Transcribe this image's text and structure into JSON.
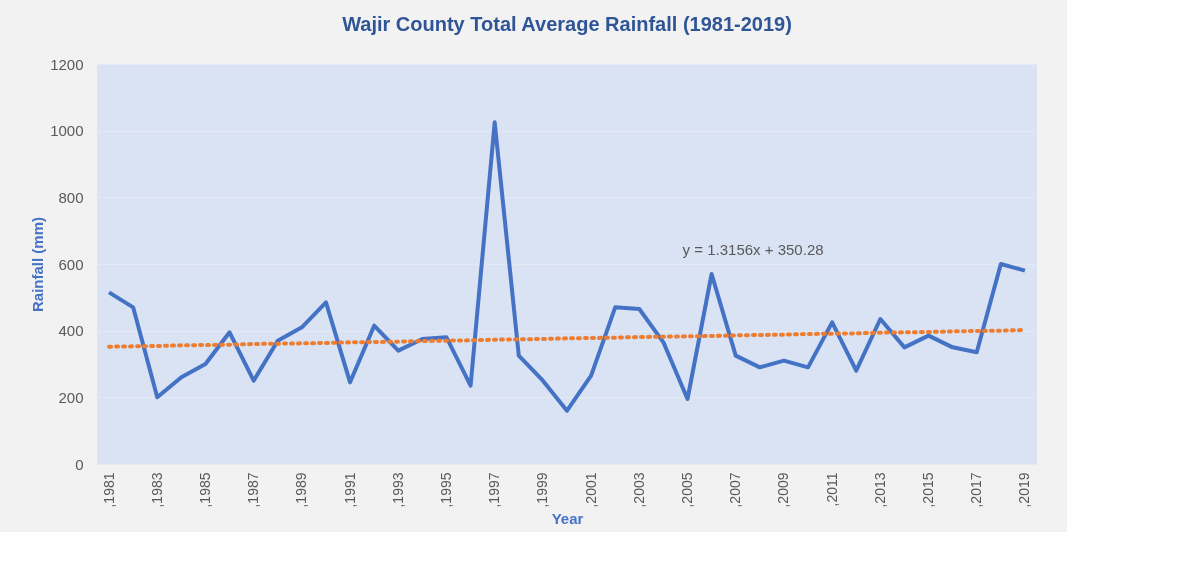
{
  "chart_data": {
    "type": "line",
    "title": "Wajir County Total Average Rainfall (1981-2019)",
    "xlabel": "Year",
    "ylabel": "Rainfall (mm)",
    "categories": [
      ",1981",
      null,
      ",1983",
      null,
      ",1985",
      null,
      ",1987",
      null,
      ",1989",
      null,
      ",1991",
      null,
      ",1993",
      null,
      ",1995",
      null,
      ",1997",
      null,
      ",1999",
      null,
      ",2001",
      null,
      ",2003",
      null,
      ",2005",
      null,
      ",2007",
      null,
      ",2009",
      null,
      ",2011",
      null,
      ",2013",
      null,
      ",2015",
      null,
      ",2017",
      null,
      ",2019"
    ],
    "series": [
      {
        "color": "#4472c4",
        "line_style": "solid",
        "values": [
          515,
          470,
          200,
          260,
          300,
          395,
          250,
          370,
          410,
          485,
          245,
          415,
          340,
          375,
          380,
          235,
          1025,
          325,
          250,
          160,
          265,
          470,
          465,
          365,
          195,
          570,
          325,
          290,
          310,
          290,
          425,
          280,
          435,
          350,
          385,
          350,
          335,
          600,
          580
        ]
      },
      {
        "color": "#ed7d31",
        "line_style": "dotted",
        "values": [
          352,
          353,
          354,
          356,
          357,
          358,
          360,
          361,
          362,
          363,
          365,
          366,
          367,
          369,
          370,
          371,
          373,
          374,
          375,
          377,
          378,
          379,
          381,
          382,
          383,
          384,
          386,
          387,
          388,
          390,
          391,
          392,
          394,
          395,
          396,
          398,
          399,
          400,
          402
        ]
      }
    ],
    "annotations": [
      "y = 1.3156x + 350.28"
    ],
    "ylim": [
      0,
      1200
    ],
    "yticks": [
      0,
      200,
      400,
      600,
      800,
      1000,
      1200
    ],
    "grid": "y",
    "marker": "none"
  }
}
